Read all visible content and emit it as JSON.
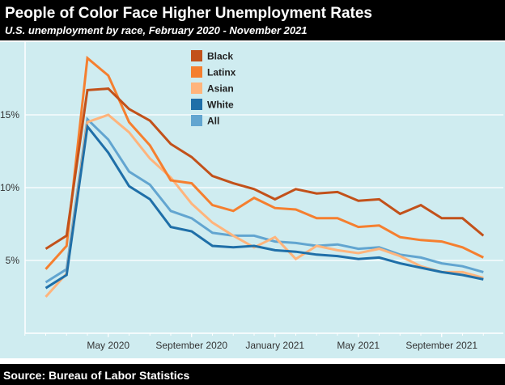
{
  "header": {
    "title": "People of Color Face Higher Unemployment Rates",
    "subtitle": "U.S. unemployment by race, February 2020 - November 2021"
  },
  "footer": {
    "source": "Source: Bureau of Labor Statistics"
  },
  "chart_data": {
    "type": "line",
    "title": "People of Color Face Higher Unemployment Rates",
    "subtitle": "U.S. unemployment by race, February 2020 - November 2021",
    "xlabel": "",
    "ylabel": "",
    "ylim": [
      0,
      20
    ],
    "grid": true,
    "legend_position": "top-center",
    "x": [
      "2020-02",
      "2020-03",
      "2020-04",
      "2020-05",
      "2020-06",
      "2020-07",
      "2020-08",
      "2020-09",
      "2020-10",
      "2020-11",
      "2020-12",
      "2021-01",
      "2021-02",
      "2021-03",
      "2021-04",
      "2021-05",
      "2021-06",
      "2021-07",
      "2021-08",
      "2021-09",
      "2021-10",
      "2021-11"
    ],
    "x_ticks": [
      {
        "month": "2020-05",
        "label": "May 2020"
      },
      {
        "month": "2020-09",
        "label": "September 2020"
      },
      {
        "month": "2021-01",
        "label": "January 2021"
      },
      {
        "month": "2021-05",
        "label": "May 2021"
      },
      {
        "month": "2021-09",
        "label": "September 2021"
      }
    ],
    "y_ticks": [
      {
        "value": 5,
        "label": "5%"
      },
      {
        "value": 10,
        "label": "10%"
      },
      {
        "value": 15,
        "label": "15%"
      }
    ],
    "series": [
      {
        "name": "Black",
        "color": "#c2511a",
        "values": [
          5.8,
          6.7,
          16.7,
          16.8,
          15.4,
          14.6,
          13.0,
          12.1,
          10.8,
          10.3,
          9.9,
          9.2,
          9.9,
          9.6,
          9.7,
          9.1,
          9.2,
          8.2,
          8.8,
          7.9,
          7.9,
          6.7
        ]
      },
      {
        "name": "Latinx",
        "color": "#f57f2f",
        "values": [
          4.4,
          6.0,
          18.9,
          17.7,
          14.5,
          12.9,
          10.5,
          10.3,
          8.8,
          8.4,
          9.3,
          8.6,
          8.5,
          7.9,
          7.9,
          7.3,
          7.4,
          6.6,
          6.4,
          6.3,
          5.9,
          5.2
        ]
      },
      {
        "name": "Asian",
        "color": "#ffb47c",
        "values": [
          2.5,
          4.1,
          14.5,
          15.0,
          13.8,
          12.0,
          10.7,
          8.9,
          7.6,
          6.7,
          5.9,
          6.6,
          5.1,
          6.0,
          5.7,
          5.5,
          5.8,
          5.3,
          4.6,
          4.2,
          4.2,
          3.8
        ]
      },
      {
        "name": "White",
        "color": "#1f6fa8",
        "values": [
          3.1,
          4.0,
          14.2,
          12.4,
          10.1,
          9.2,
          7.3,
          7.0,
          6.0,
          5.9,
          6.0,
          5.7,
          5.6,
          5.4,
          5.3,
          5.1,
          5.2,
          4.8,
          4.5,
          4.2,
          4.0,
          3.7
        ]
      },
      {
        "name": "All",
        "color": "#62a5d0",
        "values": [
          3.5,
          4.4,
          14.7,
          13.3,
          11.1,
          10.2,
          8.4,
          7.9,
          6.9,
          6.7,
          6.7,
          6.3,
          6.2,
          6.0,
          6.1,
          5.8,
          5.9,
          5.4,
          5.2,
          4.8,
          4.6,
          4.2
        ]
      }
    ]
  }
}
